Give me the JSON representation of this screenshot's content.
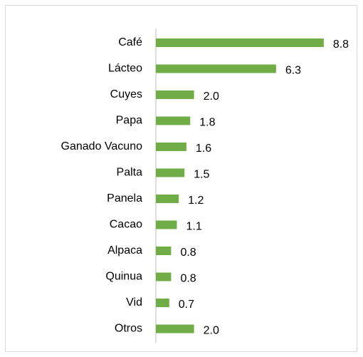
{
  "chart_data": {
    "type": "bar",
    "orientation": "horizontal",
    "categories": [
      "Café",
      "Lácteo",
      "Cuyes",
      "Papa",
      "Ganado Vacuno",
      "Palta",
      "Panela",
      "Cacao",
      "Alpaca",
      "Quinua",
      "Vid",
      "Otros"
    ],
    "values": [
      8.8,
      6.3,
      2.0,
      1.8,
      1.6,
      1.5,
      1.2,
      1.1,
      0.8,
      0.8,
      0.7,
      2.0
    ],
    "value_labels": [
      "8.8",
      "6.3",
      "2.0",
      "1.8",
      "1.6",
      "1.5",
      "1.2",
      "1.1",
      "0.8",
      "0.8",
      "0.7",
      "2.0"
    ],
    "color": "#70ad47"
  }
}
